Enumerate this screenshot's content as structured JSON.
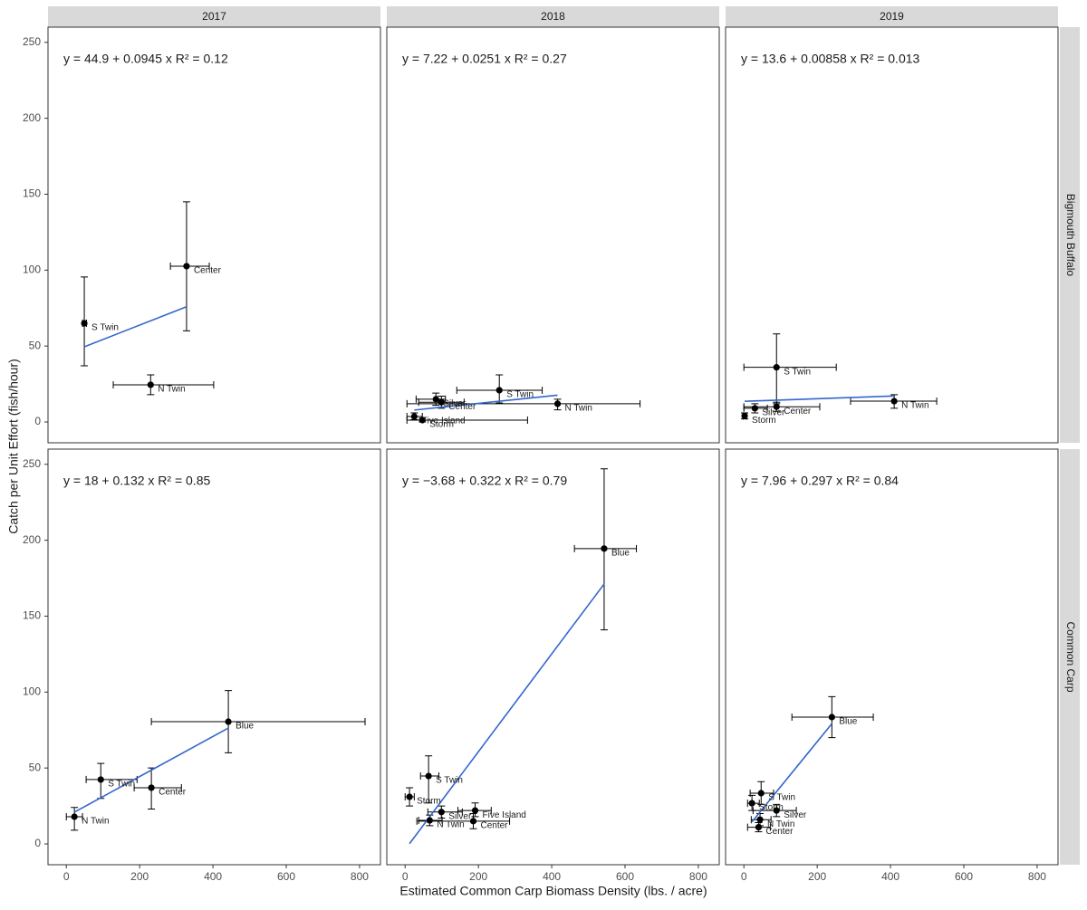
{
  "chart_data": {
    "type": "facet_scatter",
    "x_label": "Estimated Common Carp Biomass Density (lbs. / acre)",
    "y_label": "Catch per Unit Effort (fish/hour)",
    "columns": [
      "2017",
      "2018",
      "2019"
    ],
    "rows": [
      "Bigmouth Buffalo",
      "Common Carp"
    ],
    "xlim": [
      -50,
      857
    ],
    "ylim": [
      -13.7,
      260
    ],
    "xticks": [
      0,
      200,
      400,
      600,
      800
    ],
    "yticks": [
      0,
      50,
      100,
      150,
      200,
      250
    ],
    "point_color": "#000000",
    "fit_color": "#3366cc",
    "panels": [
      {
        "equation": "y = 44.9 + 0.0945 x   R² = 0.12",
        "labels": [
          "S Twin",
          "Center",
          "N Twin"
        ],
        "x": [
          49,
          328,
          230
        ],
        "y": [
          65,
          102.6,
          24.5
        ],
        "xmin": [
          44,
          284,
          128
        ],
        "xmax": [
          55,
          390,
          402
        ],
        "ymin": [
          37,
          60,
          18
        ],
        "ymax": [
          95.5,
          145,
          31
        ],
        "fit_x": [
          49,
          328
        ],
        "fit_y": [
          49.5,
          75.9
        ]
      },
      {
        "equation": "y = 7.22 + 0.0251 x   R² = 0.27",
        "labels": [
          "S Twin",
          "Center",
          "Silver",
          "N Twin",
          "Five Island",
          "Storm"
        ],
        "x": [
          257,
          99,
          84,
          416,
          25,
          47
        ],
        "y": [
          20.9,
          13,
          15,
          12,
          3.6,
          1.2
        ],
        "xmin": [
          141,
          37,
          30,
          5,
          5,
          5
        ],
        "xmax": [
          374,
          161,
          110,
          641,
          47,
          334
        ],
        "ymin": [
          12.5,
          9,
          11,
          8,
          1.5,
          0
        ],
        "ymax": [
          31,
          17,
          19,
          15,
          6,
          2.5
        ],
        "fit_x": [
          25,
          416
        ],
        "fit_y": [
          7.85,
          17.66
        ]
      },
      {
        "equation": "y = 13.6 + 0.00858 x   R² = 0.013",
        "labels": [
          "S Twin",
          "N Twin",
          "Center",
          "Silver",
          "Storm"
        ],
        "x": [
          89,
          410,
          89,
          30,
          2
        ],
        "y": [
          36,
          13.7,
          10,
          9,
          4
        ],
        "xmin": [
          0,
          291,
          0,
          0,
          -2
        ],
        "xmax": [
          252,
          526,
          207,
          64,
          6
        ],
        "ymin": [
          12,
          9,
          7,
          6,
          2
        ],
        "ymax": [
          58,
          18,
          13,
          12,
          6
        ],
        "fit_x": [
          2,
          410
        ],
        "fit_y": [
          13.62,
          17.12
        ]
      },
      {
        "equation": "y = 18 + 0.132 x   R² = 0.85",
        "labels": [
          "N Twin",
          "S Twin",
          "Center",
          "Blue"
        ],
        "x": [
          22,
          94,
          232,
          442
        ],
        "y": [
          17.9,
          42.4,
          37,
          80.5
        ],
        "xmin": [
          0,
          54,
          185,
          232
        ],
        "xmax": [
          44,
          193,
          314,
          815
        ],
        "ymin": [
          9,
          30,
          23,
          60
        ],
        "ymax": [
          24,
          53,
          50,
          101
        ],
        "fit_x": [
          22,
          442
        ],
        "fit_y": [
          20.9,
          76.3
        ]
      },
      {
        "equation": "y = −3.68 + 0.322 x   R² = 0.79",
        "labels": [
          "Blue",
          "S Twin",
          "Storm",
          "Silver",
          "Five Island",
          "N Twin",
          "Center"
        ],
        "x": [
          543,
          64,
          12,
          99,
          191,
          67,
          186
        ],
        "y": [
          194.5,
          44.7,
          31,
          21,
          22,
          15.5,
          15
        ],
        "xmin": [
          462,
          42,
          0,
          62,
          144,
          37,
          32
        ],
        "xmax": [
          631,
          92,
          25,
          156,
          235,
          101,
          285
        ],
        "ymin": [
          141,
          27,
          25,
          17,
          18,
          12,
          10
        ],
        "ymax": [
          247,
          58,
          37,
          25,
          27,
          19,
          20
        ],
        "fit_x": [
          12,
          543
        ],
        "fit_y": [
          0.18,
          171.2
        ]
      },
      {
        "equation": "y = 7.96 + 0.297 x   R² = 0.84",
        "labels": [
          "Blue",
          "S Twin",
          "Storm",
          "Silver",
          "N Twin",
          "Center"
        ],
        "x": [
          240,
          47,
          22,
          89,
          44,
          40
        ],
        "y": [
          83.5,
          33.4,
          26.8,
          22,
          16,
          11
        ],
        "xmin": [
          131,
          17,
          10,
          25,
          20,
          10
        ],
        "xmax": [
          353,
          81,
          42,
          143,
          74,
          72
        ],
        "ymin": [
          70,
          26,
          22,
          18,
          12,
          8
        ],
        "ymax": [
          97,
          41,
          32,
          26,
          20,
          14
        ],
        "fit_x": [
          22,
          240
        ],
        "fit_y": [
          14.5,
          79.2
        ]
      }
    ]
  }
}
